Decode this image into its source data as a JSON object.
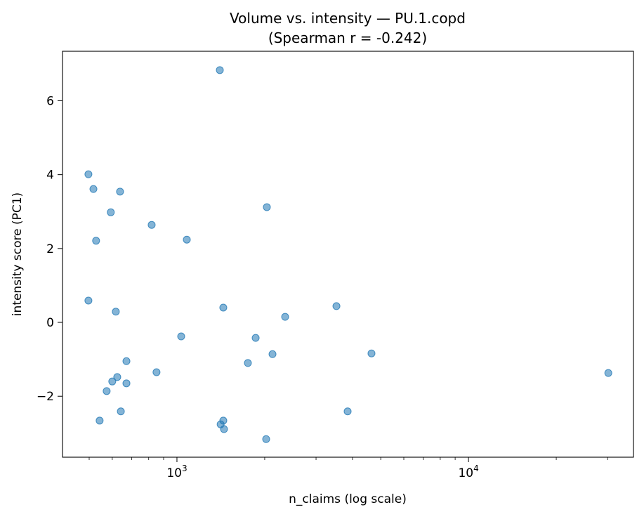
{
  "chart_data": {
    "type": "scatter",
    "title": "Volume vs. intensity — PU.1.copd",
    "subtitle": "(Spearman r = -0.242)",
    "xlabel": "n_claims (log scale)",
    "ylabel": "intensity score (PC1)",
    "xscale": "log",
    "xlim": [
      405,
      36800
    ],
    "ylim": [
      -3.65,
      7.34
    ],
    "xticks": [
      {
        "value": 1000,
        "base": "10",
        "exp": "3"
      },
      {
        "value": 10000,
        "base": "10",
        "exp": "4"
      }
    ],
    "yticks": [
      {
        "value": 6,
        "label": "6"
      },
      {
        "value": 4,
        "label": "4"
      },
      {
        "value": 2,
        "label": "2"
      },
      {
        "value": 0,
        "label": "0"
      },
      {
        "value": -2,
        "label": "−2"
      }
    ],
    "grid": false,
    "marker_color": "#1f77b4",
    "points": [
      {
        "x": 1403,
        "y": 6.83
      },
      {
        "x": 497,
        "y": 4.01
      },
      {
        "x": 517,
        "y": 3.61
      },
      {
        "x": 638,
        "y": 3.54
      },
      {
        "x": 593,
        "y": 2.98
      },
      {
        "x": 2034,
        "y": 3.12
      },
      {
        "x": 819,
        "y": 2.64
      },
      {
        "x": 1081,
        "y": 2.24
      },
      {
        "x": 528,
        "y": 2.21
      },
      {
        "x": 497,
        "y": 0.59
      },
      {
        "x": 617,
        "y": 0.29
      },
      {
        "x": 1442,
        "y": 0.4
      },
      {
        "x": 3524,
        "y": 0.44
      },
      {
        "x": 2350,
        "y": 0.15
      },
      {
        "x": 1034,
        "y": -0.38
      },
      {
        "x": 1862,
        "y": -0.42
      },
      {
        "x": 2127,
        "y": -0.86
      },
      {
        "x": 4648,
        "y": -0.84
      },
      {
        "x": 1751,
        "y": -1.1
      },
      {
        "x": 671,
        "y": -1.05
      },
      {
        "x": 851,
        "y": -1.35
      },
      {
        "x": 30170,
        "y": -1.37
      },
      {
        "x": 624,
        "y": -1.48
      },
      {
        "x": 600,
        "y": -1.6
      },
      {
        "x": 671,
        "y": -1.65
      },
      {
        "x": 574,
        "y": -1.86
      },
      {
        "x": 642,
        "y": -2.41
      },
      {
        "x": 3850,
        "y": -2.41
      },
      {
        "x": 543,
        "y": -2.66
      },
      {
        "x": 1442,
        "y": -2.66
      },
      {
        "x": 1412,
        "y": -2.76
      },
      {
        "x": 1450,
        "y": -2.89
      },
      {
        "x": 2023,
        "y": -3.16
      }
    ]
  }
}
